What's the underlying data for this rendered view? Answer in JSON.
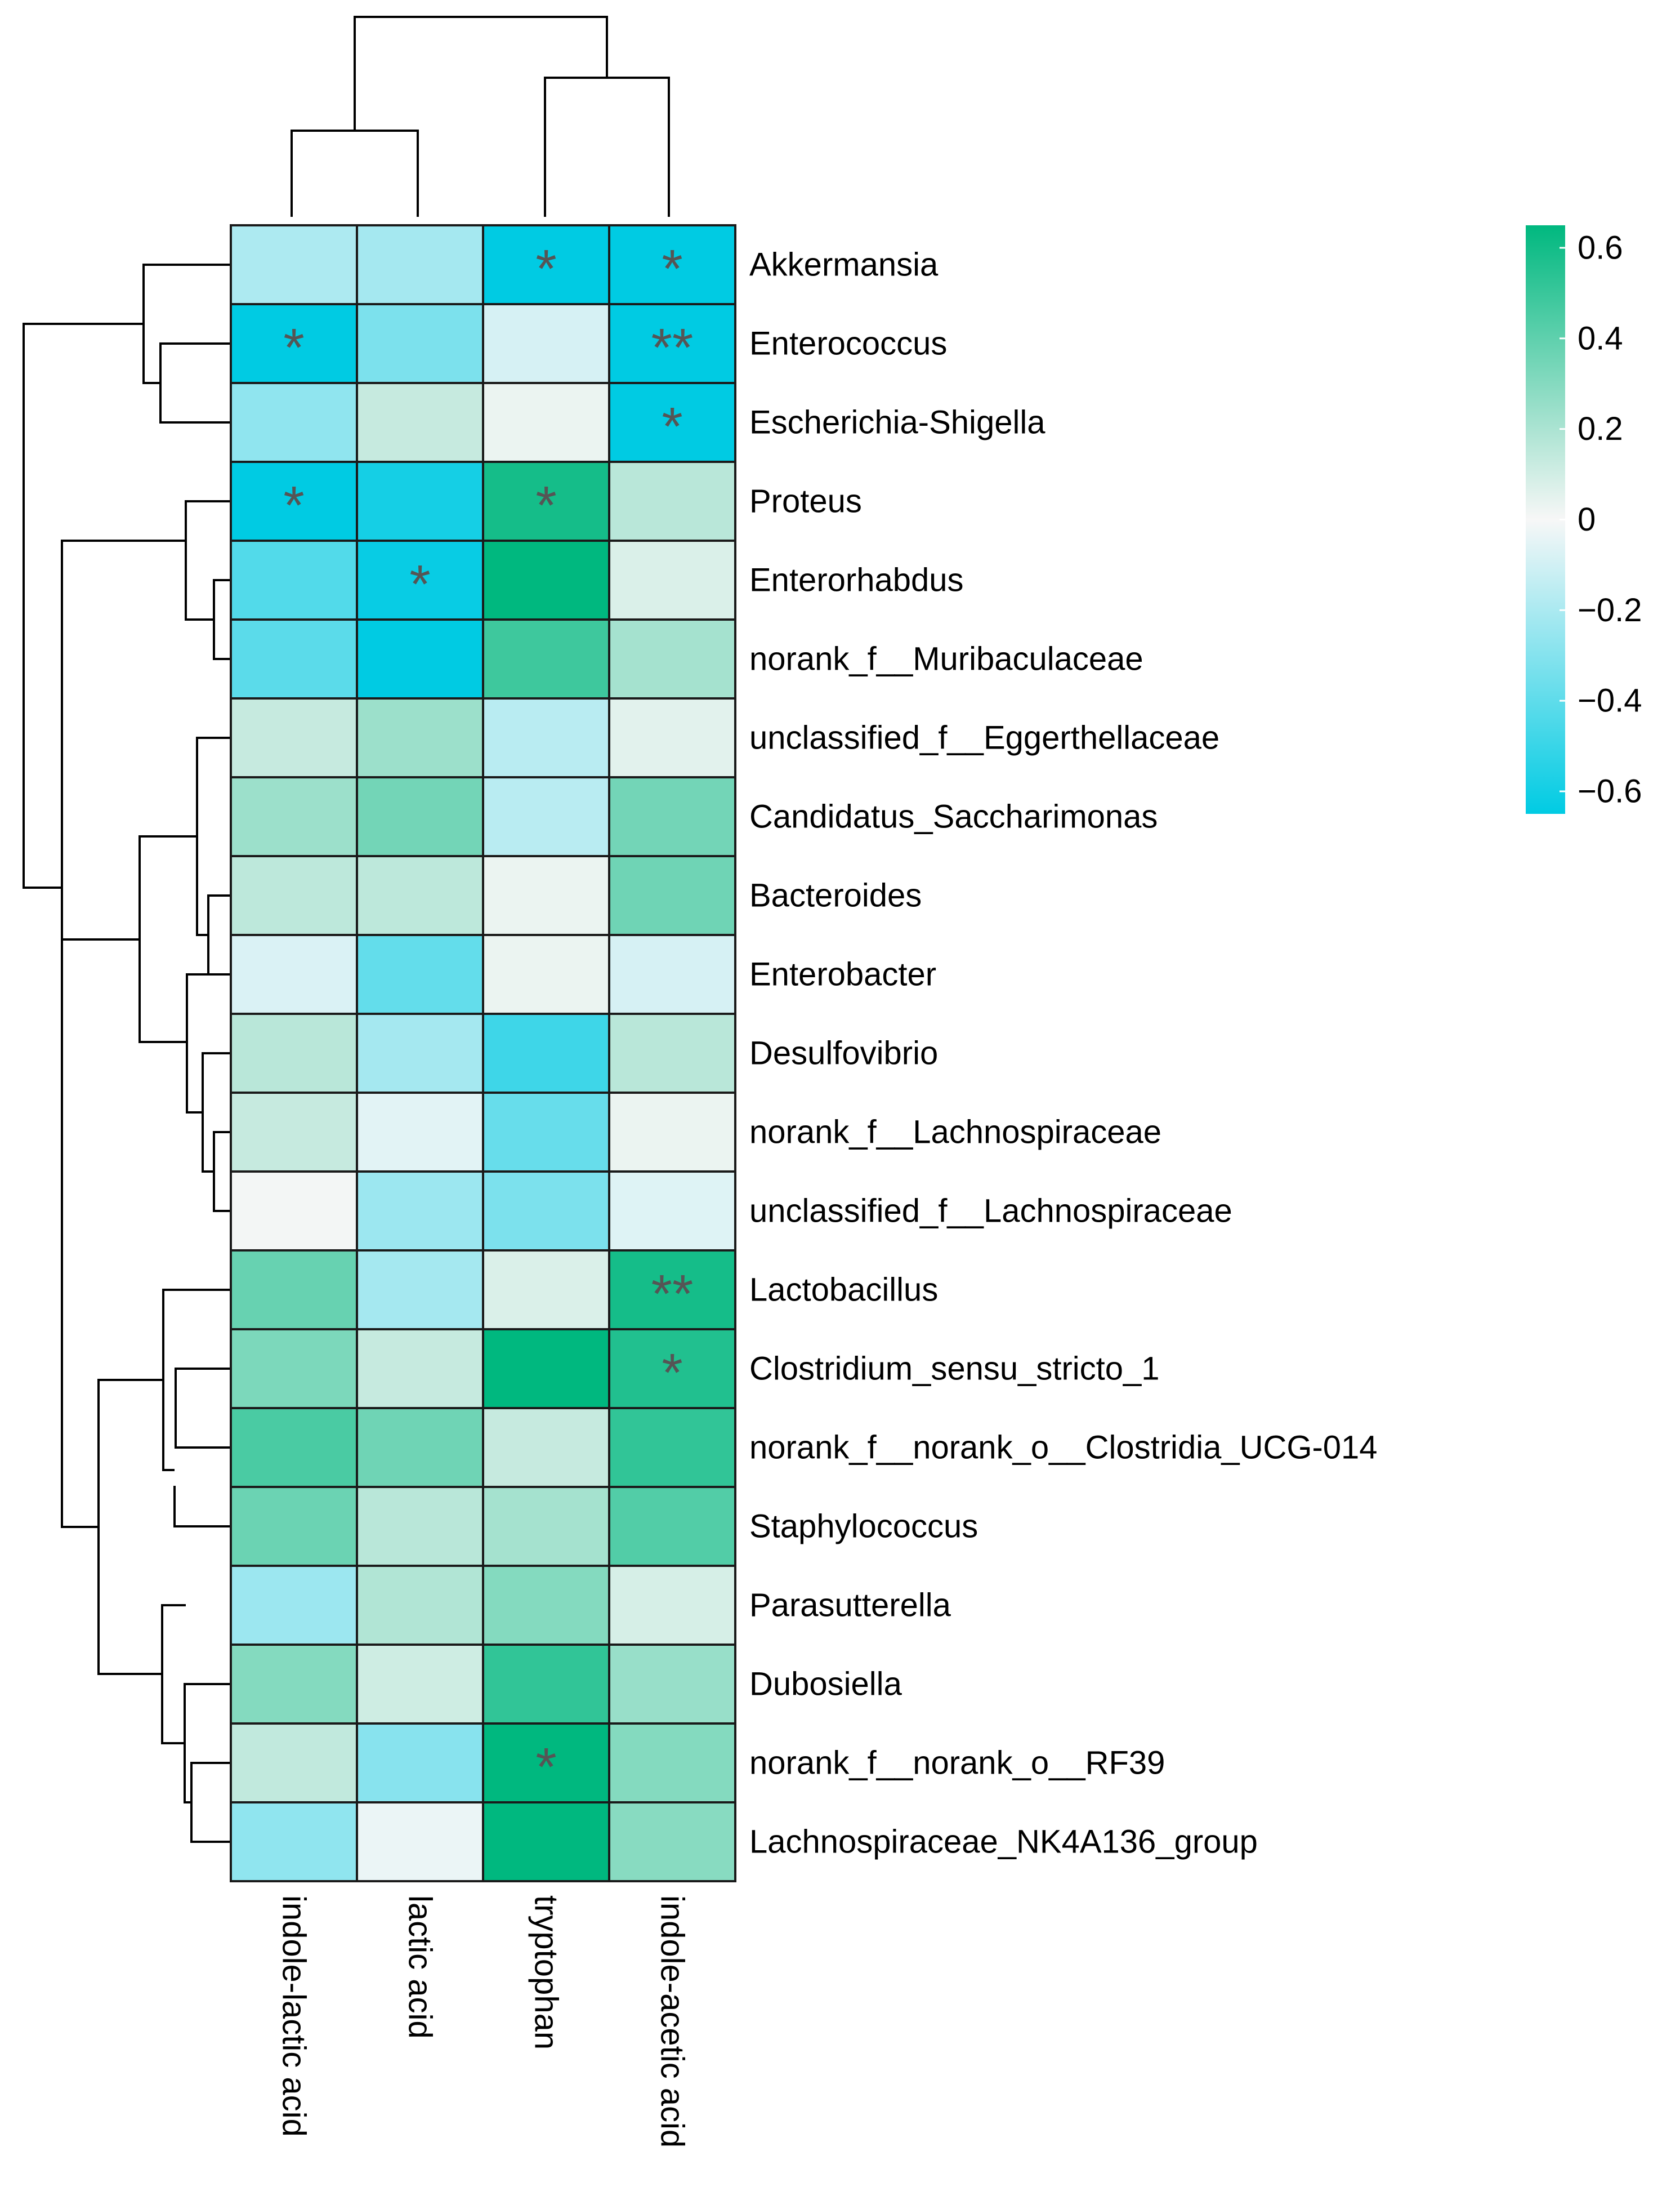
{
  "chart_data": {
    "type": "heatmap",
    "title": "",
    "columns": [
      "indole-lactic acid",
      "lactic acid",
      "tryptophan",
      "indole-acetic acid"
    ],
    "rows": [
      "Akkermansia",
      "Enterococcus",
      "Escherichia-Shigella",
      "Proteus",
      "Enterorhabdus",
      "norank_f__Muribaculaceae",
      "unclassified_f__Eggerthellaceae",
      "Candidatus_Saccharimonas",
      "Bacteroides",
      "Enterobacter",
      "Desulfovibrio",
      "norank_f__Lachnospiraceae",
      "unclassified_f__Lachnospiraceae",
      "Lactobacillus",
      "Clostridium_sensu_stricto_1",
      "norank_f__norank_o__Clostridia_UCG-014",
      "Staphylococcus",
      "Parasutterella",
      "Dubosiella",
      "norank_f__norank_o__RF39",
      "Lachnospiraceae_NK4A136_group"
    ],
    "values": [
      [
        -0.18,
        -0.2,
        -0.6,
        -0.6
      ],
      [
        -0.6,
        -0.3,
        -0.08,
        -0.6
      ],
      [
        -0.25,
        0.12,
        0.03,
        -0.6
      ],
      [
        -0.6,
        -0.55,
        0.55,
        0.15
      ],
      [
        -0.4,
        -0.58,
        0.6,
        0.07
      ],
      [
        -0.38,
        -0.62,
        0.45,
        0.2
      ],
      [
        0.12,
        0.22,
        -0.15,
        0.05
      ],
      [
        0.22,
        0.32,
        -0.15,
        0.32
      ],
      [
        0.14,
        0.14,
        0.03,
        0.33
      ],
      [
        -0.07,
        -0.36,
        0.03,
        -0.08
      ],
      [
        0.15,
        -0.2,
        -0.45,
        0.15
      ],
      [
        0.12,
        -0.05,
        -0.35,
        0.03
      ],
      [
        0.01,
        -0.22,
        -0.3,
        -0.06
      ],
      [
        0.35,
        -0.2,
        0.07,
        0.55
      ],
      [
        0.3,
        0.12,
        0.6,
        0.52
      ],
      [
        0.42,
        0.33,
        0.12,
        0.48
      ],
      [
        0.34,
        0.15,
        0.2,
        0.4
      ],
      [
        -0.22,
        0.17,
        0.28,
        0.08
      ],
      [
        0.28,
        0.1,
        0.48,
        0.23
      ],
      [
        0.13,
        -0.27,
        0.6,
        0.28
      ],
      [
        -0.25,
        -0.03,
        0.6,
        0.27
      ]
    ],
    "significance": [
      [
        "",
        "",
        "*",
        "*"
      ],
      [
        "*",
        "",
        "",
        "**"
      ],
      [
        "",
        "",
        "",
        "*"
      ],
      [
        "*",
        "",
        "*",
        ""
      ],
      [
        "",
        "*",
        "",
        ""
      ],
      [
        "",
        "",
        "",
        ""
      ],
      [
        "",
        "",
        "",
        ""
      ],
      [
        "",
        "",
        "",
        ""
      ],
      [
        "",
        "",
        "",
        ""
      ],
      [
        "",
        "",
        "",
        ""
      ],
      [
        "",
        "",
        "",
        ""
      ],
      [
        "",
        "",
        "",
        ""
      ],
      [
        "",
        "",
        "",
        ""
      ],
      [
        "",
        "",
        "",
        "**"
      ],
      [
        "",
        "",
        "",
        "*"
      ],
      [
        "",
        "",
        "",
        ""
      ],
      [
        "",
        "",
        "",
        ""
      ],
      [
        "",
        "",
        "",
        ""
      ],
      [
        "",
        "",
        "",
        ""
      ],
      [
        "",
        "",
        "*",
        ""
      ],
      [
        "",
        "",
        "",
        ""
      ]
    ],
    "colorbar": {
      "min": -0.6,
      "max": 0.6,
      "ticks": [
        0.6,
        0.4,
        0.2,
        0,
        -0.2,
        -0.4,
        -0.6
      ],
      "tick_labels": [
        "0.6",
        "0.4",
        "0.2",
        "0",
        "−0.2",
        "−0.4",
        "−0.6"
      ],
      "low_color": "#00cbe3",
      "mid_color": "#f7f7f7",
      "high_color": "#00b87f"
    },
    "cell_border_color": "#1a1a1a",
    "star_color": "#555555",
    "dendrogram": "hierarchical clustering on rows and columns"
  }
}
